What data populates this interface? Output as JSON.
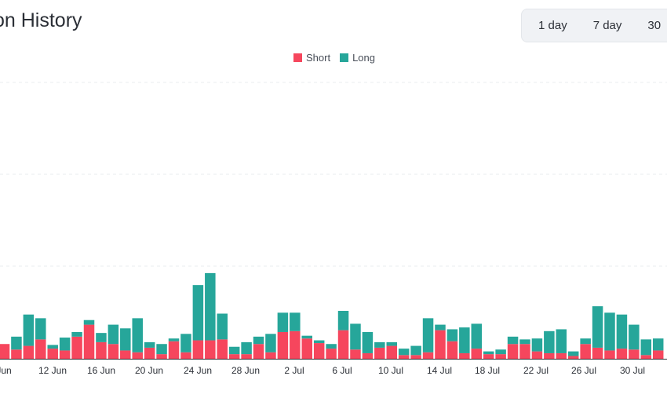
{
  "title": "on History",
  "ranges": [
    "1 day",
    "7 day",
    "30"
  ],
  "colors": {
    "short": "#f6465d",
    "long": "#26a69a",
    "grid": "#eaecef"
  },
  "chart_data": {
    "type": "bar",
    "stacked": true,
    "series": [
      {
        "name": "Short",
        "values": [
          1.6,
          1.0,
          1.4,
          2.1,
          1.1,
          0.9,
          2.4,
          3.7,
          1.8,
          1.6,
          0.9,
          0.7,
          1.2,
          0.5,
          1.9,
          0.7,
          2.0,
          2.0,
          2.1,
          0.5,
          0.5,
          1.6,
          0.7,
          2.9,
          3.0,
          2.2,
          1.7,
          1.1,
          3.1,
          1.0,
          0.6,
          1.2,
          1.4,
          0.4,
          0.4,
          0.7,
          3.1,
          1.9,
          0.6,
          1.1,
          0.5,
          0.5,
          1.6,
          1.6,
          0.8,
          0.6,
          0.6,
          0.3,
          1.6,
          1.2,
          0.9,
          1.1,
          1.0,
          0.4,
          0.9
        ]
      },
      {
        "name": "Long",
        "values": [
          0.0,
          1.4,
          3.4,
          2.3,
          0.4,
          1.4,
          0.5,
          0.5,
          1.0,
          2.1,
          2.4,
          3.7,
          0.6,
          1.1,
          0.3,
          2.0,
          6.0,
          7.3,
          2.8,
          0.8,
          1.3,
          0.8,
          2.0,
          2.1,
          2.0,
          0.3,
          0.3,
          0.5,
          2.1,
          2.8,
          2.3,
          0.6,
          0.4,
          0.7,
          1.0,
          3.7,
          0.6,
          1.3,
          2.8,
          2.7,
          0.3,
          0.5,
          0.8,
          0.5,
          1.4,
          2.4,
          2.6,
          0.5,
          0.6,
          4.5,
          4.1,
          3.7,
          2.7,
          1.7,
          1.3
        ]
      }
    ],
    "x_labels": [
      "Jun",
      "12 Jun",
      "16 Jun",
      "20 Jun",
      "24 Jun",
      "28 Jun",
      "2 Jul",
      "6 Jul",
      "10 Jul",
      "14 Jul",
      "18 Jul",
      "22 Jul",
      "26 Jul",
      "30 Jul"
    ],
    "ylim": [
      0,
      30
    ],
    "grid": true,
    "legend_position": "top-center"
  }
}
